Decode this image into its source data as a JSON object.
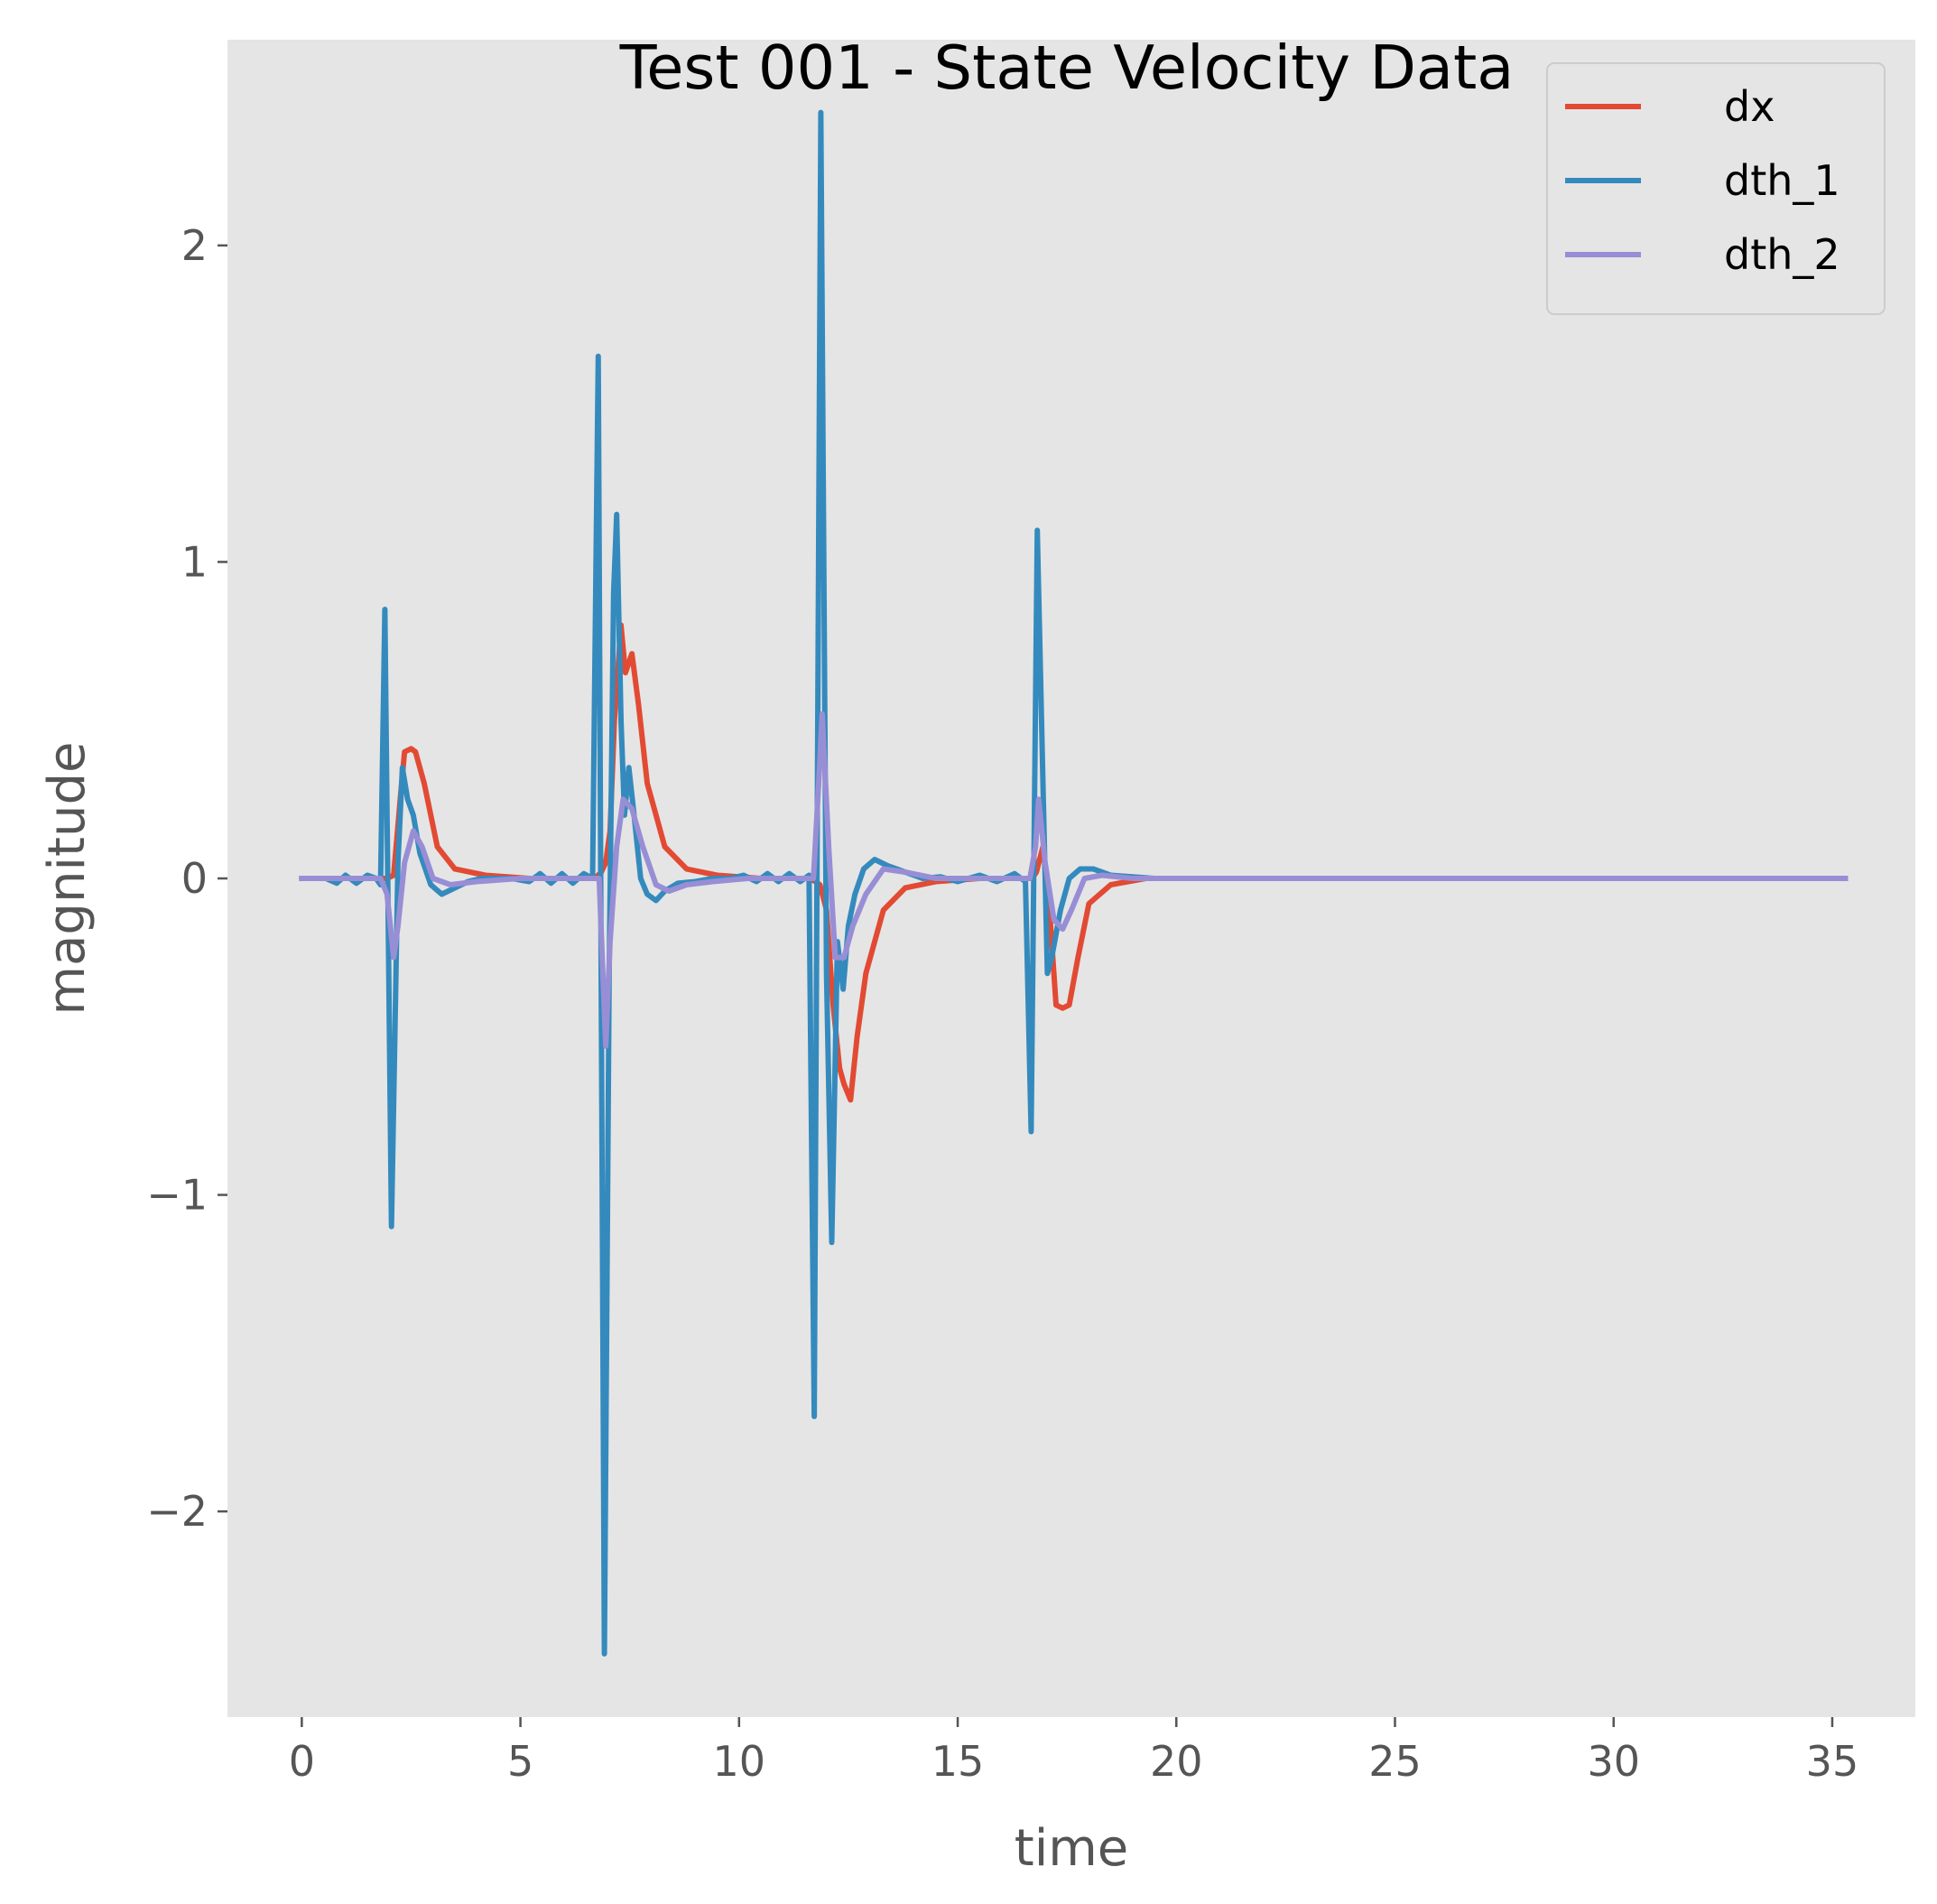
{
  "chart_data": {
    "type": "line",
    "title": "Test 001 - State Velocity Data",
    "xlabel": "time",
    "ylabel": "magnitude",
    "xlim": [
      -1.7,
      36.9
    ],
    "ylim": [
      -2.65,
      2.65
    ],
    "xticks": [
      0,
      5,
      10,
      15,
      20,
      25,
      30,
      35
    ],
    "yticks": [
      -2,
      -1,
      0,
      1,
      2
    ],
    "ytick_labels": [
      "−2",
      "−1",
      "0",
      "1",
      "2"
    ],
    "grid": false,
    "legend": "top-right",
    "background": "#E5E5E5",
    "series": [
      {
        "name": "dx",
        "color": "#E24A33",
        "x": [
          0,
          1.7,
          1.95,
          2.1,
          2.25,
          2.35,
          2.5,
          2.6,
          2.8,
          3.1,
          3.5,
          4.2,
          5.2,
          6.7,
          6.85,
          6.95,
          7.05,
          7.15,
          7.3,
          7.4,
          7.55,
          7.7,
          7.9,
          8.3,
          8.8,
          9.5,
          10.5,
          11.6,
          11.75,
          11.85,
          12.0,
          12.15,
          12.3,
          12.4,
          12.55,
          12.7,
          12.9,
          13.3,
          13.8,
          14.5,
          15.5,
          16.6,
          16.7,
          16.8,
          16.95,
          17.1,
          17.25,
          17.4,
          17.55,
          17.75,
          18.0,
          18.5,
          19.3,
          20.5,
          35.3
        ],
        "y": [
          0,
          0,
          0,
          0.01,
          0.25,
          0.4,
          0.41,
          0.4,
          0.3,
          0.1,
          0.03,
          0.01,
          0,
          0,
          0.02,
          0.05,
          0.15,
          0.5,
          0.8,
          0.65,
          0.71,
          0.55,
          0.3,
          0.1,
          0.03,
          0.01,
          0,
          0,
          -0.01,
          -0.02,
          -0.1,
          -0.4,
          -0.6,
          -0.65,
          -0.7,
          -0.5,
          -0.3,
          -0.1,
          -0.03,
          -0.01,
          0,
          0,
          0,
          0.02,
          0.1,
          -0.1,
          -0.4,
          -0.41,
          -0.4,
          -0.25,
          -0.08,
          -0.02,
          0,
          0,
          0
        ]
      },
      {
        "name": "dth_1",
        "color": "#348ABD",
        "x": [
          0,
          0.55,
          0.8,
          1.0,
          1.25,
          1.5,
          1.7,
          1.8,
          1.9,
          2.05,
          2.2,
          2.3,
          2.42,
          2.55,
          2.7,
          2.95,
          3.2,
          3.5,
          3.8,
          4.1,
          4.4,
          4.8,
          5.2,
          5.45,
          5.7,
          5.95,
          6.2,
          6.45,
          6.65,
          6.78,
          6.92,
          7.03,
          7.13,
          7.2,
          7.3,
          7.38,
          7.48,
          7.6,
          7.75,
          7.9,
          8.1,
          8.3,
          8.6,
          9.0,
          9.4,
          9.8,
          10.1,
          10.4,
          10.65,
          10.9,
          11.15,
          11.4,
          11.6,
          11.72,
          11.87,
          12.0,
          12.12,
          12.25,
          12.38,
          12.5,
          12.65,
          12.85,
          13.1,
          13.4,
          13.8,
          14.2,
          14.6,
          15.0,
          15.5,
          15.9,
          16.3,
          16.55,
          16.68,
          16.82,
          16.95,
          17.05,
          17.15,
          17.35,
          17.55,
          17.8,
          18.1,
          18.5,
          19.0,
          19.5,
          19.9,
          35.3
        ],
        "y": [
          0,
          0,
          -0.015,
          0.01,
          -0.015,
          0.01,
          0,
          -0.02,
          0.85,
          -1.1,
          0.05,
          0.35,
          0.25,
          0.2,
          0.08,
          -0.02,
          -0.05,
          -0.03,
          -0.01,
          0,
          0,
          0,
          -0.01,
          0.015,
          -0.015,
          0.015,
          -0.015,
          0.015,
          0,
          1.65,
          -2.45,
          -0.3,
          0.9,
          1.15,
          0.5,
          0.2,
          0.35,
          0.2,
          0,
          -0.05,
          -0.07,
          -0.04,
          -0.015,
          -0.01,
          0,
          0,
          0.01,
          -0.01,
          0.015,
          -0.01,
          0.015,
          -0.01,
          0.01,
          -1.7,
          2.42,
          -0.3,
          -1.15,
          -0.2,
          -0.35,
          -0.15,
          -0.05,
          0.03,
          0.06,
          0.04,
          0.02,
          0,
          0.005,
          -0.01,
          0.01,
          -0.01,
          0.015,
          -0.01,
          -0.8,
          1.1,
          0.3,
          -0.3,
          -0.25,
          -0.1,
          0,
          0.03,
          0.03,
          0.01,
          0.005,
          0,
          0,
          0
        ]
      },
      {
        "name": "dth_2",
        "color": "#988ED5",
        "x": [
          0,
          1.8,
          1.95,
          2.1,
          2.2,
          2.35,
          2.55,
          2.75,
          3.0,
          3.4,
          4.0,
          5.0,
          6.8,
          6.95,
          7.05,
          7.2,
          7.35,
          7.55,
          7.8,
          8.1,
          8.4,
          8.8,
          9.4,
          10.2,
          11.7,
          11.82,
          11.9,
          12.05,
          12.2,
          12.4,
          12.6,
          12.9,
          13.3,
          13.8,
          14.5,
          16.65,
          16.78,
          16.85,
          17.0,
          17.2,
          17.4,
          17.6,
          17.9,
          18.3,
          19.0,
          20.0,
          35.3
        ],
        "y": [
          0,
          0,
          -0.05,
          -0.25,
          -0.15,
          0.05,
          0.15,
          0.1,
          0,
          -0.02,
          -0.01,
          0,
          0,
          -0.53,
          -0.2,
          0.1,
          0.25,
          0.22,
          0.1,
          -0.02,
          -0.04,
          -0.02,
          -0.01,
          0,
          0,
          0.3,
          0.52,
          0.1,
          -0.25,
          -0.25,
          -0.15,
          -0.05,
          0.03,
          0.02,
          0,
          0,
          0.1,
          0.25,
          0.05,
          -0.13,
          -0.16,
          -0.1,
          0,
          0.01,
          0,
          0,
          0
        ]
      }
    ]
  }
}
